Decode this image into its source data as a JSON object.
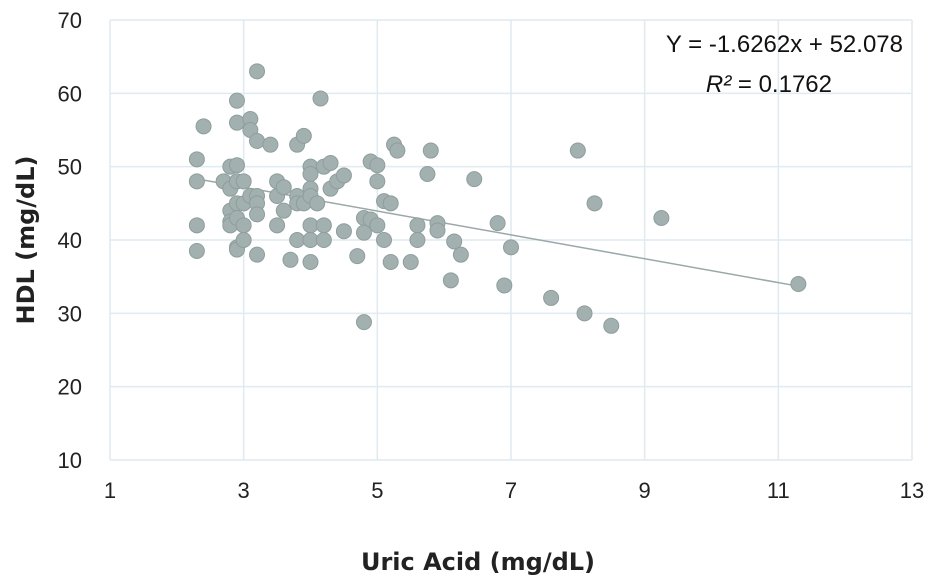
{
  "chart_data": {
    "type": "scatter",
    "title": "",
    "xlabel": "Uric Acid (mg/dL)",
    "ylabel": "HDL (mg/dL)",
    "xlim": [
      1,
      13
    ],
    "ylim": [
      10,
      70
    ],
    "xticks": [
      "1",
      "3",
      "5",
      "7",
      "9",
      "11",
      "13"
    ],
    "yticks": [
      "10",
      "20",
      "30",
      "40",
      "50",
      "60",
      "70"
    ],
    "grid": true,
    "legend": "none",
    "colors": {
      "point": "#a2b0af",
      "point_edge": "#8e9e9d",
      "trendline": "#9aa8a7",
      "grid": "#dfeaf1"
    },
    "trendline": {
      "slope": -1.6262,
      "intercept": 52.078,
      "x_range": [
        2.3,
        11.3
      ]
    },
    "annotations": {
      "equation": "Y = -1.6262x + 52.078",
      "r2_label": "R²",
      "r2_value": " = 0.1762"
    },
    "points": [
      [
        2.3,
        51
      ],
      [
        2.3,
        48
      ],
      [
        2.3,
        42
      ],
      [
        2.3,
        38.5
      ],
      [
        2.4,
        55.5
      ],
      [
        2.7,
        48
      ],
      [
        2.8,
        50
      ],
      [
        2.8,
        47
      ],
      [
        2.8,
        44
      ],
      [
        2.8,
        42.5
      ],
      [
        2.8,
        42
      ],
      [
        2.9,
        59
      ],
      [
        2.9,
        56
      ],
      [
        2.9,
        50.2
      ],
      [
        2.9,
        48
      ],
      [
        2.9,
        45
      ],
      [
        2.9,
        43
      ],
      [
        2.9,
        39
      ],
      [
        2.9,
        38.7
      ],
      [
        3.0,
        48
      ],
      [
        3.0,
        45
      ],
      [
        3.0,
        42
      ],
      [
        3.0,
        40
      ],
      [
        3.1,
        56.5
      ],
      [
        3.1,
        55
      ],
      [
        3.1,
        46
      ],
      [
        3.2,
        63
      ],
      [
        3.2,
        53.5
      ],
      [
        3.2,
        46
      ],
      [
        3.2,
        45
      ],
      [
        3.2,
        43.5
      ],
      [
        3.2,
        38
      ],
      [
        3.4,
        53
      ],
      [
        3.5,
        48
      ],
      [
        3.5,
        46
      ],
      [
        3.5,
        42
      ],
      [
        3.6,
        44
      ],
      [
        3.6,
        47.2
      ],
      [
        3.7,
        37.3
      ],
      [
        3.8,
        53
      ],
      [
        3.8,
        46
      ],
      [
        3.8,
        45
      ],
      [
        3.8,
        40
      ],
      [
        3.9,
        54.2
      ],
      [
        3.9,
        45
      ],
      [
        4.0,
        50
      ],
      [
        4.0,
        49
      ],
      [
        4.0,
        47
      ],
      [
        4.0,
        46
      ],
      [
        4.0,
        42
      ],
      [
        4.0,
        40
      ],
      [
        4.0,
        37
      ],
      [
        4.1,
        45
      ],
      [
        4.15,
        59.3
      ],
      [
        4.2,
        50
      ],
      [
        4.2,
        42
      ],
      [
        4.2,
        40
      ],
      [
        4.3,
        50.5
      ],
      [
        4.3,
        47
      ],
      [
        4.4,
        48
      ],
      [
        4.5,
        48.8
      ],
      [
        4.5,
        41.2
      ],
      [
        4.7,
        37.8
      ],
      [
        4.8,
        43
      ],
      [
        4.8,
        41
      ],
      [
        4.8,
        28.8
      ],
      [
        4.9,
        50.7
      ],
      [
        4.9,
        42.8
      ],
      [
        5.0,
        50.2
      ],
      [
        5.0,
        48
      ],
      [
        5.0,
        42
      ],
      [
        5.1,
        45.3
      ],
      [
        5.1,
        40
      ],
      [
        5.2,
        45
      ],
      [
        5.2,
        37
      ],
      [
        5.25,
        53
      ],
      [
        5.3,
        52.2
      ],
      [
        5.5,
        37
      ],
      [
        5.6,
        42
      ],
      [
        5.6,
        40
      ],
      [
        5.8,
        52.2
      ],
      [
        5.75,
        49
      ],
      [
        5.9,
        42.3
      ],
      [
        5.9,
        41.3
      ],
      [
        6.1,
        34.5
      ],
      [
        6.15,
        39.8
      ],
      [
        6.25,
        38
      ],
      [
        6.45,
        48.3
      ],
      [
        6.8,
        42.3
      ],
      [
        6.9,
        33.8
      ],
      [
        7.0,
        39
      ],
      [
        7.6,
        32.1
      ],
      [
        8.0,
        52.2
      ],
      [
        8.1,
        30
      ],
      [
        8.25,
        45
      ],
      [
        8.5,
        28.3
      ],
      [
        9.25,
        43
      ],
      [
        11.3,
        34
      ]
    ]
  }
}
